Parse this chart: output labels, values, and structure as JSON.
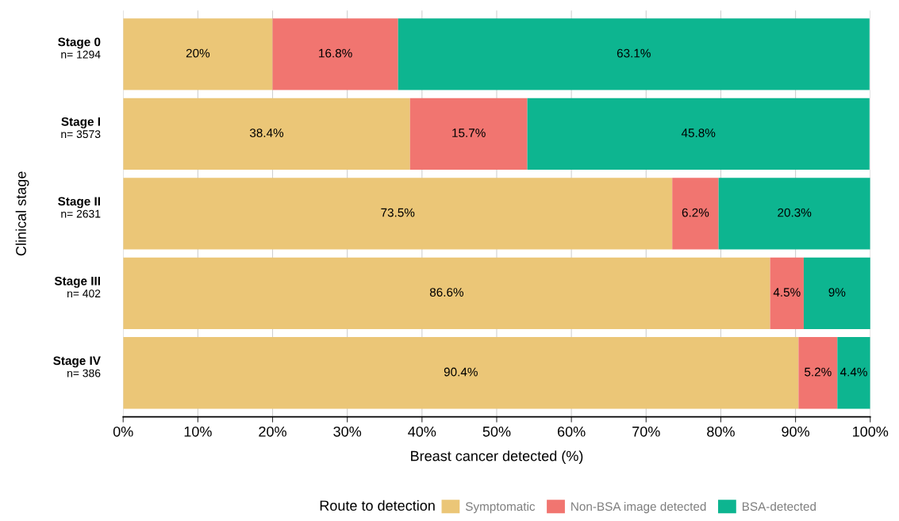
{
  "chart_data": {
    "type": "bar",
    "orientation": "horizontal",
    "stacked": true,
    "categories": [
      "Stage 0\nn= 1294",
      "Stage I\nn= 3573",
      "Stage II\nn= 2631",
      "Stage III\nn= 402",
      "Stage IV\nn= 386"
    ],
    "series": [
      {
        "name": "Symptomatic",
        "color": "#ebc677",
        "values": [
          20,
          38.4,
          73.5,
          86.6,
          90.4
        ],
        "value_labels": [
          "20%",
          "38.4%",
          "73.5%",
          "86.6%",
          "90.4%"
        ]
      },
      {
        "name": "Non-BSA image detected",
        "color": "#f17570",
        "values": [
          16.8,
          15.7,
          6.2,
          4.5,
          5.2
        ],
        "value_labels": [
          "16.8%",
          "15.7%",
          "6.2%",
          "4.5%",
          "5.2%"
        ]
      },
      {
        "name": "BSA-detected",
        "color": "#0db590",
        "values": [
          63.1,
          45.8,
          20.3,
          9,
          4.4
        ],
        "value_labels": [
          "63.1%",
          "45.8%",
          "20.3%",
          "9%",
          "4.4%"
        ]
      }
    ],
    "xlim": [
      0,
      100
    ],
    "xticks": [
      {
        "value": 0,
        "label": "0%"
      },
      {
        "value": 10,
        "label": "10%"
      },
      {
        "value": 20,
        "label": "20%"
      },
      {
        "value": 30,
        "label": "30%"
      },
      {
        "value": 40,
        "label": "40%"
      },
      {
        "value": 50,
        "label": "50%"
      },
      {
        "value": 60,
        "label": "60%"
      },
      {
        "value": 70,
        "label": "70%"
      },
      {
        "value": 80,
        "label": "80%"
      },
      {
        "value": 90,
        "label": "90%"
      },
      {
        "value": 100,
        "label": "100%"
      }
    ],
    "xlabel": "Breast cancer detected (%)",
    "ylabel": "Clinical stage",
    "legend_title": "Route to detection",
    "legend": "bottom",
    "grid": "x"
  }
}
